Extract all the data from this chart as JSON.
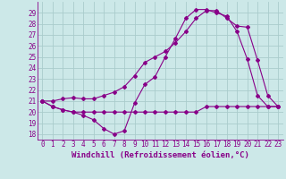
{
  "xlabel": "Windchill (Refroidissement éolien,°C)",
  "bg_color": "#cce8e8",
  "grid_color": "#aacccc",
  "line_color": "#880088",
  "xlim": [
    -0.5,
    23.5
  ],
  "ylim": [
    17.5,
    30.0
  ],
  "xticks": [
    0,
    1,
    2,
    3,
    4,
    5,
    6,
    7,
    8,
    9,
    10,
    11,
    12,
    13,
    14,
    15,
    16,
    17,
    18,
    19,
    20,
    21,
    22,
    23
  ],
  "yticks": [
    18,
    19,
    20,
    21,
    22,
    23,
    24,
    25,
    26,
    27,
    28,
    29
  ],
  "line1_x": [
    0,
    1,
    2,
    3,
    4,
    5,
    6,
    7,
    8,
    9,
    10,
    11,
    12,
    13,
    14,
    15,
    16,
    17,
    18,
    19,
    20,
    21,
    22,
    23
  ],
  "line1_y": [
    21.0,
    20.5,
    20.2,
    20.0,
    20.0,
    20.0,
    20.0,
    20.0,
    20.0,
    20.0,
    20.0,
    20.0,
    20.0,
    20.0,
    20.0,
    20.0,
    20.5,
    20.5,
    20.5,
    20.5,
    20.5,
    20.5,
    20.5,
    20.5
  ],
  "line2_x": [
    0,
    1,
    2,
    3,
    4,
    5,
    6,
    7,
    8,
    9,
    10,
    11,
    12,
    13,
    14,
    15,
    16,
    17,
    18,
    19,
    20,
    21,
    22,
    23
  ],
  "line2_y": [
    21.0,
    20.5,
    20.2,
    20.0,
    19.7,
    19.3,
    18.5,
    18.0,
    18.3,
    20.8,
    22.5,
    23.2,
    25.0,
    26.7,
    28.5,
    29.3,
    29.3,
    29.0,
    28.7,
    27.3,
    24.8,
    21.5,
    20.5,
    20.5
  ],
  "line3_x": [
    0,
    1,
    2,
    3,
    4,
    5,
    6,
    7,
    8,
    9,
    10,
    11,
    12,
    13,
    14,
    15,
    16,
    17,
    18,
    19,
    20,
    21,
    22,
    23
  ],
  "line3_y": [
    21.0,
    21.0,
    21.2,
    21.3,
    21.2,
    21.2,
    21.5,
    21.8,
    22.3,
    23.3,
    24.5,
    25.0,
    25.5,
    26.3,
    27.3,
    28.5,
    29.2,
    29.2,
    28.5,
    27.8,
    27.7,
    24.7,
    21.5,
    20.5
  ],
  "font_size_tick": 5.5,
  "font_size_xlabel": 6.5,
  "marker": "D",
  "marker_size": 2.0,
  "linewidth": 0.8
}
